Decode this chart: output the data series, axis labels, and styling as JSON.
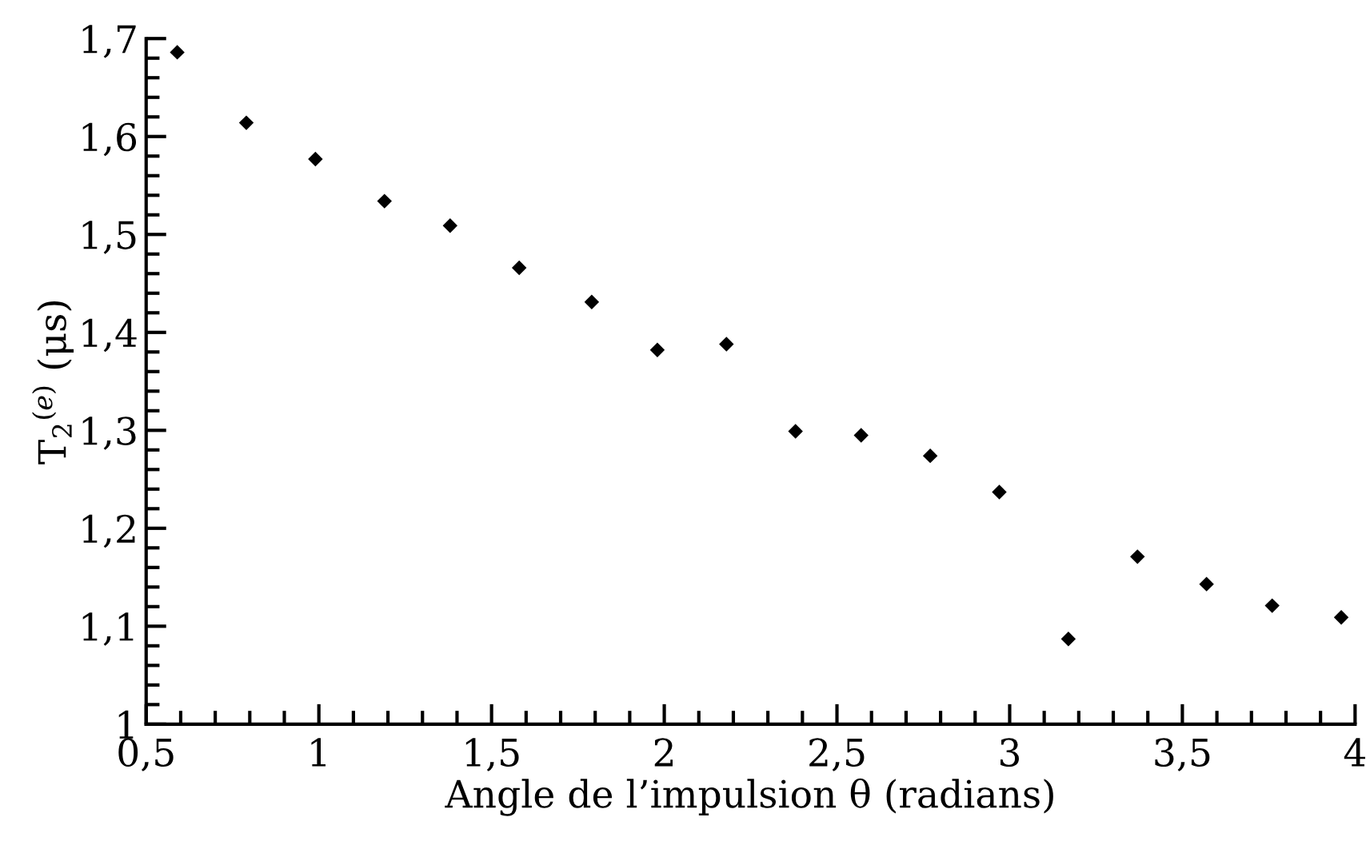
{
  "chart_data": {
    "type": "scatter",
    "xlabel": "Angle de l’impulsion θ (radians)",
    "ylabel": "T$_{2}$$^{(e)}$ (μs)",
    "x": [
      0.59,
      0.79,
      0.99,
      1.19,
      1.38,
      1.58,
      1.79,
      1.98,
      2.18,
      2.38,
      2.57,
      2.77,
      2.97,
      3.17,
      3.37,
      3.57,
      3.76,
      3.96
    ],
    "values": [
      1.686,
      1.614,
      1.577,
      1.534,
      1.509,
      1.466,
      1.431,
      1.382,
      1.388,
      1.299,
      1.295,
      1.274,
      1.237,
      1.087,
      1.171,
      1.143,
      1.121,
      1.109
    ],
    "color": "#000000",
    "marker": "diamond",
    "xlim": [
      0.5,
      4
    ],
    "xticks": [
      {
        "value": 0.5,
        "label": "0,5"
      },
      1,
      {
        "value": 1.5,
        "label": "1,5"
      },
      2,
      {
        "value": 2.5,
        "label": "2,5"
      },
      3,
      {
        "value": 3.5,
        "label": "3,5"
      },
      4
    ],
    "ylim": [
      1,
      1.7
    ],
    "yticks": [
      1,
      {
        "value": 1.1,
        "label": "1,1"
      },
      {
        "value": 1.2,
        "label": "1,2"
      },
      {
        "value": 1.3,
        "label": "1,3"
      },
      {
        "value": 1.4,
        "label": "1,4"
      },
      {
        "value": 1.5,
        "label": "1,5"
      },
      {
        "value": 1.6,
        "label": "1,6"
      },
      {
        "value": 1.7,
        "label": "1,7"
      }
    ],
    "grid": false
  }
}
